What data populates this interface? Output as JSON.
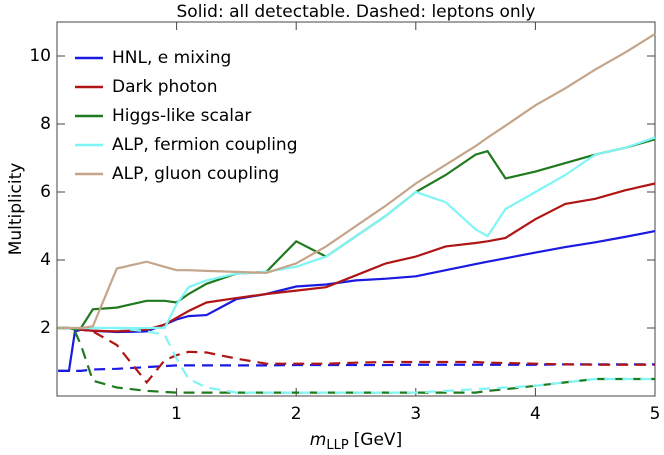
{
  "chart_data": {
    "type": "line",
    "title": "Solid: all detectable. Dashed: leptons only",
    "x_label": "m",
    "x_label_subscript": "LLP",
    "x_label_unit": "[GeV]",
    "y_label": "Multiplicity",
    "xlim": [
      0,
      5
    ],
    "xticks": [
      1,
      2,
      3,
      4,
      5
    ],
    "ylim": [
      0,
      11
    ],
    "yticks": [
      2,
      4,
      6,
      8,
      10
    ],
    "legend": "top-left",
    "x": [
      0.01,
      0.1,
      0.15,
      0.2,
      0.3,
      0.5,
      0.75,
      0.9,
      1,
      1.1,
      1.25,
      1.5,
      1.75,
      2,
      2.25,
      2.5,
      2.75,
      3,
      3.25,
      3.5,
      3.6,
      3.75,
      4,
      4.25,
      4.5,
      4.75,
      5
    ],
    "series": [
      {
        "name": "HNL, e mixing",
        "color": "#1a1ae0",
        "values": [
          0.74,
          0.74,
          1.9,
          1.95,
          1.92,
          1.88,
          1.9,
          2.1,
          2.25,
          2.35,
          2.38,
          2.85,
          3.0,
          3.22,
          3.28,
          3.4,
          3.45,
          3.52,
          3.7,
          3.88,
          3.95,
          4.05,
          4.22,
          4.38,
          4.52,
          4.68,
          4.85
        ],
        "lepton_values": [
          0.74,
          0.74,
          0.74,
          0.74,
          0.78,
          0.8,
          0.85,
          0.88,
          0.9,
          0.9,
          0.9,
          0.9,
          0.9,
          0.91,
          0.91,
          0.91,
          0.91,
          0.92,
          0.92,
          0.92,
          0.92,
          0.92,
          0.92,
          0.93,
          0.93,
          0.93,
          0.93
        ]
      },
      {
        "name": "Dark photon",
        "color": "#b01515",
        "values": [
          2.0,
          2.0,
          1.97,
          1.95,
          1.92,
          1.9,
          1.95,
          2.1,
          2.3,
          2.5,
          2.75,
          2.88,
          3.0,
          3.1,
          3.2,
          3.55,
          3.9,
          4.1,
          4.4,
          4.5,
          4.55,
          4.65,
          5.2,
          5.65,
          5.8,
          6.05,
          6.25
        ],
        "lepton_values": [
          2.0,
          2.0,
          1.97,
          1.95,
          1.9,
          1.5,
          0.4,
          1.05,
          1.2,
          1.3,
          1.28,
          1.1,
          0.95,
          0.95,
          0.95,
          0.98,
          1.0,
          1.0,
          1.0,
          1.0,
          0.98,
          0.97,
          0.95,
          0.93,
          0.92,
          0.92,
          0.92
        ]
      },
      {
        "name": "Higgs-like scalar",
        "color": "#1f7a1f",
        "values": [
          2.0,
          2.0,
          1.95,
          2.0,
          2.55,
          2.6,
          2.8,
          2.8,
          2.75,
          3.0,
          3.3,
          3.6,
          3.65,
          4.55,
          4.1,
          4.7,
          5.3,
          6.0,
          6.5,
          7.1,
          7.2,
          6.4,
          6.6,
          6.85,
          7.1,
          7.3,
          7.55
        ],
        "lepton_values": [
          2.0,
          2.0,
          1.9,
          1.5,
          0.45,
          0.25,
          0.15,
          0.12,
          0.1,
          0.1,
          0.1,
          0.1,
          0.1,
          0.1,
          0.1,
          0.1,
          0.1,
          0.1,
          0.1,
          0.1,
          0.15,
          0.2,
          0.3,
          0.4,
          0.5,
          0.5,
          0.5
        ]
      },
      {
        "name": "ALP, fermion coupling",
        "color": "#7ff5f5",
        "values": [
          2.0,
          2.0,
          2.0,
          2.0,
          2.0,
          2.0,
          2.0,
          2.0,
          2.7,
          3.2,
          3.4,
          3.6,
          3.65,
          3.8,
          4.1,
          4.7,
          5.3,
          6.0,
          5.7,
          4.9,
          4.7,
          5.5,
          6.0,
          6.5,
          7.1,
          7.3,
          7.6
        ],
        "lepton_values": [
          2.0,
          2.0,
          2.0,
          2.0,
          2.0,
          2.0,
          1.9,
          1.8,
          1.1,
          0.5,
          0.25,
          0.1,
          0.1,
          0.1,
          0.1,
          0.1,
          0.1,
          0.1,
          0.15,
          0.2,
          0.22,
          0.25,
          0.3,
          0.4,
          0.5,
          0.5,
          0.5
        ]
      },
      {
        "name": "ALP, gluon coupling",
        "color": "#c4a58a",
        "values": [
          2.0,
          2.0,
          2.0,
          2.0,
          2.05,
          3.75,
          3.95,
          3.8,
          3.7,
          3.7,
          3.68,
          3.65,
          3.62,
          3.9,
          4.4,
          5.0,
          5.6,
          6.25,
          6.8,
          7.35,
          7.6,
          7.95,
          8.55,
          9.05,
          9.6,
          10.1,
          10.65
        ]
      }
    ]
  }
}
